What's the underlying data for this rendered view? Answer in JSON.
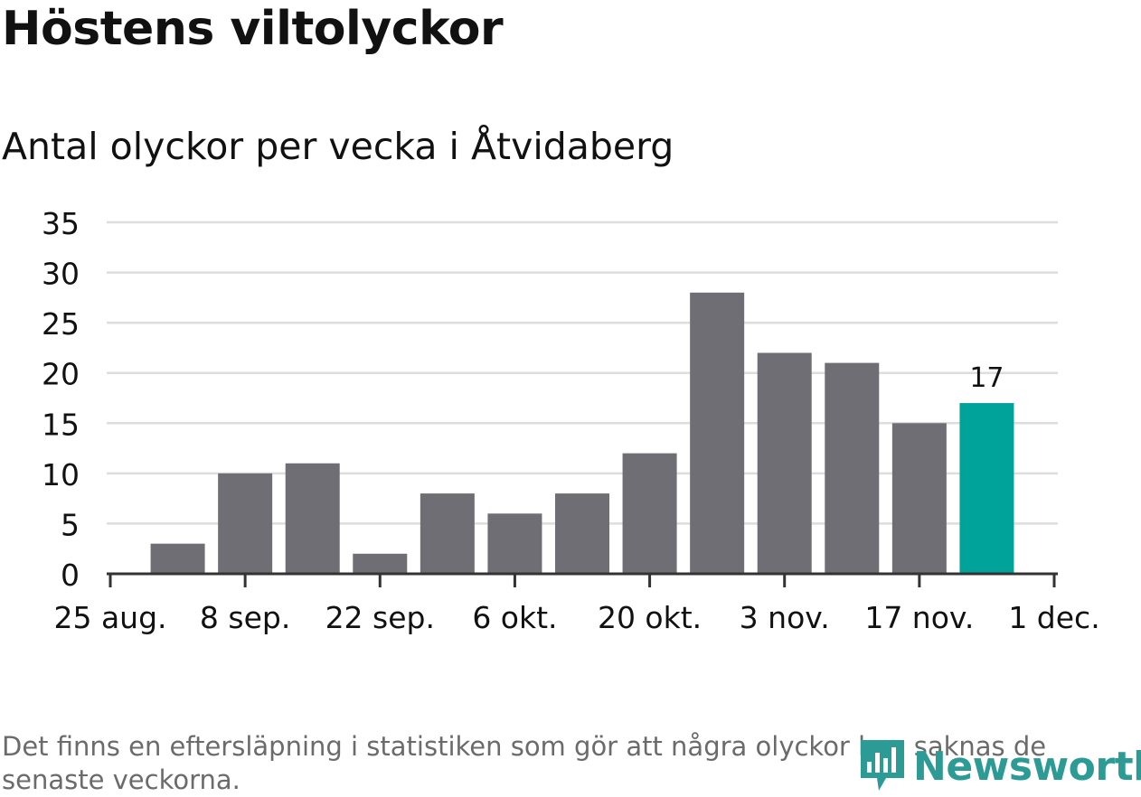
{
  "title": "Höstens viltolyckor",
  "subtitle": "Antal olyckor per vecka i Åtvidaberg",
  "footnote": "Det finns en eftersläpning i statistiken som gör att några olyckor kan saknas de senaste veckorna.",
  "logo": {
    "text": "Newsworthy",
    "icon": "newsworthy-logo-icon"
  },
  "colors": {
    "bar": "#6f6e74",
    "highlight": "#00a39a",
    "grid": "#dddddd",
    "axis": "#333333",
    "text": "#111111",
    "logo": "#2d9b95"
  },
  "chart_data": {
    "type": "bar",
    "title": "Antal olyckor per vecka i Åtvidaberg",
    "xlabel": "",
    "ylabel": "",
    "ylim": [
      0,
      35
    ],
    "y_ticks": [
      0,
      5,
      10,
      15,
      20,
      25,
      30,
      35
    ],
    "x_domain": [
      0,
      15
    ],
    "x_ticks": [
      {
        "label": "25 aug.",
        "pos": 0
      },
      {
        "label": "8 sep.",
        "pos": 2
      },
      {
        "label": "22 sep.",
        "pos": 4
      },
      {
        "label": "6 okt.",
        "pos": 6
      },
      {
        "label": "20 okt.",
        "pos": 8
      },
      {
        "label": "3 nov.",
        "pos": 10
      },
      {
        "label": "17 nov.",
        "pos": 12
      },
      {
        "label": "1 dec.",
        "pos": 14
      }
    ],
    "bars": [
      {
        "week": 1,
        "value": 3
      },
      {
        "week": 2,
        "value": 10
      },
      {
        "week": 3,
        "value": 11
      },
      {
        "week": 4,
        "value": 2
      },
      {
        "week": 5,
        "value": 8
      },
      {
        "week": 6,
        "value": 6
      },
      {
        "week": 7,
        "value": 8
      },
      {
        "week": 8,
        "value": 12
      },
      {
        "week": 9,
        "value": 28
      },
      {
        "week": 10,
        "value": 22
      },
      {
        "week": 11,
        "value": 21
      },
      {
        "week": 12,
        "value": 15
      },
      {
        "week": 13,
        "value": 17
      }
    ],
    "highlight_index": 12,
    "data_labels": [
      {
        "index": 12,
        "text": "17"
      }
    ],
    "grid": true,
    "legend": "none"
  }
}
